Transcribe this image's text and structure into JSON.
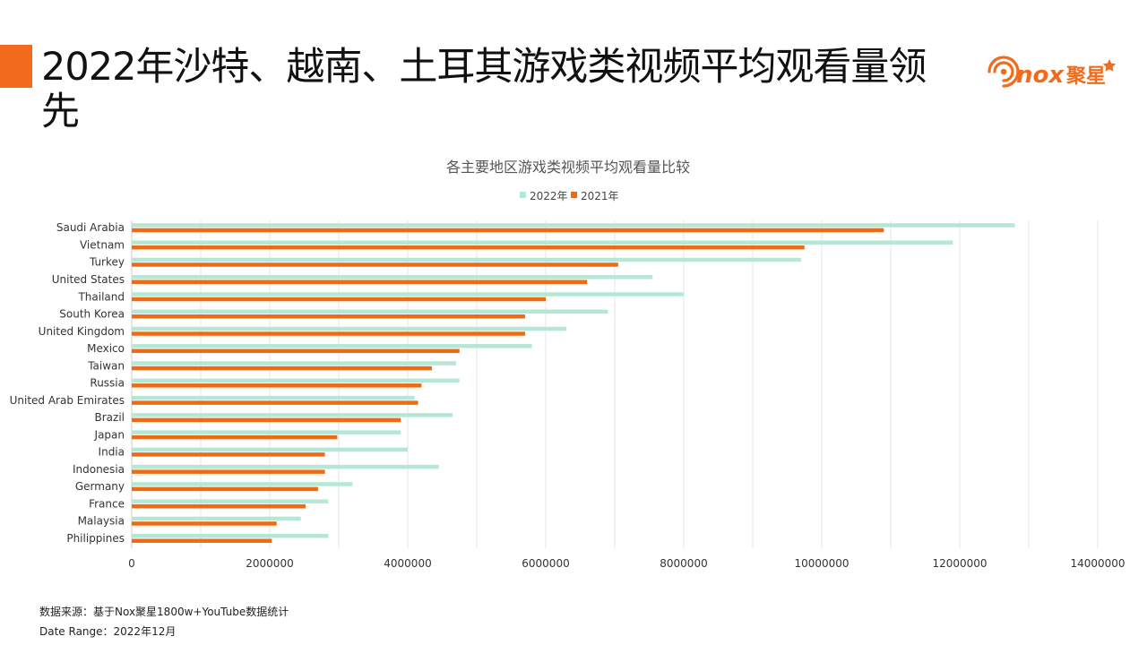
{
  "title": "2022年沙特、越南、土耳其游戏类视频平均观看量领先",
  "logo": {
    "text": "聚星",
    "mark": "nox",
    "color": "#F26B1D"
  },
  "colors": {
    "accent": "#F26B1D",
    "series_2022": "#B5E8D4",
    "series_2021": "#EE6A14",
    "grid": "#E6E6E6"
  },
  "footer": {
    "source": "数据来源：基于Nox聚星1800w+YouTube数据统计",
    "date_range": "Date Range：2022年12月"
  },
  "chart_data": {
    "type": "bar",
    "orientation": "horizontal",
    "title": "各主要地区游戏类视频平均观看量比较",
    "legend_position": "top-center",
    "categories": [
      "Saudi Arabia",
      "Vietnam",
      "Turkey",
      "United States",
      "Thailand",
      "South Korea",
      "United Kingdom",
      "Mexico",
      "Taiwan",
      "Russia",
      "United Arab Emirates",
      "Brazil",
      "Japan",
      "India",
      "Indonesia",
      "Germany",
      "France",
      "Malaysia",
      "Philippines"
    ],
    "series": [
      {
        "name": "2022年",
        "color": "#B5E8D4",
        "values": [
          12800000,
          11900000,
          9700000,
          7550000,
          8000000,
          6900000,
          6300000,
          5800000,
          4700000,
          4750000,
          4100000,
          4650000,
          3900000,
          4000000,
          4450000,
          3200000,
          2850000,
          2450000,
          2850000
        ]
      },
      {
        "name": "2021年",
        "color": "#EE6A14",
        "values": [
          10900000,
          9750000,
          7050000,
          6600000,
          6000000,
          5700000,
          5700000,
          4750000,
          4350000,
          4200000,
          4150000,
          3900000,
          2980000,
          2800000,
          2800000,
          2700000,
          2520000,
          2100000,
          2030000
        ]
      }
    ],
    "xlim": [
      0,
      14000000
    ],
    "x_ticks": [
      "0",
      "2000000",
      "4000000",
      "6000000",
      "8000000",
      "10000000",
      "12000000",
      "14000000"
    ],
    "x_tick_values": [
      0,
      2000000,
      4000000,
      6000000,
      8000000,
      10000000,
      12000000,
      14000000
    ],
    "grid": true
  }
}
